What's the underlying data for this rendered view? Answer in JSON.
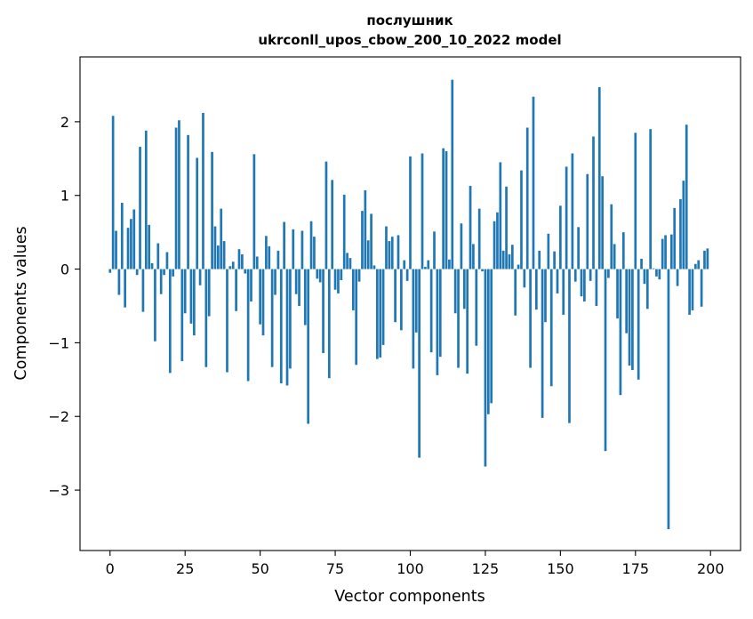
{
  "chart_data": {
    "type": "bar",
    "title_line1": "послушник",
    "title_line2": "ukrconll_upos_cbow_200_10_2022 model",
    "xlabel": "Vector components",
    "ylabel": "Components values",
    "xlim": [
      -10,
      210
    ],
    "ylim": [
      -3.82,
      2.88
    ],
    "xticks": [
      0,
      25,
      50,
      75,
      100,
      125,
      150,
      175,
      200
    ],
    "yticks": [
      -3,
      -2,
      -1,
      0,
      1,
      2
    ],
    "xtick_labels": [
      "0",
      "25",
      "50",
      "75",
      "100",
      "125",
      "150",
      "175",
      "200"
    ],
    "ytick_labels": [
      "−3",
      "−2",
      "−1",
      "0",
      "1",
      "2"
    ],
    "grid": false,
    "bar_color": "#1f77b4",
    "x": [
      0,
      1,
      2,
      3,
      4,
      5,
      6,
      7,
      8,
      9,
      10,
      11,
      12,
      13,
      14,
      15,
      16,
      17,
      18,
      19,
      20,
      21,
      22,
      23,
      24,
      25,
      26,
      27,
      28,
      29,
      30,
      31,
      32,
      33,
      34,
      35,
      36,
      37,
      38,
      39,
      40,
      41,
      42,
      43,
      44,
      45,
      46,
      47,
      48,
      49,
      50,
      51,
      52,
      53,
      54,
      55,
      56,
      57,
      58,
      59,
      60,
      61,
      62,
      63,
      64,
      65,
      66,
      67,
      68,
      69,
      70,
      71,
      72,
      73,
      74,
      75,
      76,
      77,
      78,
      79,
      80,
      81,
      82,
      83,
      84,
      85,
      86,
      87,
      88,
      89,
      90,
      91,
      92,
      93,
      94,
      95,
      96,
      97,
      98,
      99,
      100,
      101,
      102,
      103,
      104,
      105,
      106,
      107,
      108,
      109,
      110,
      111,
      112,
      113,
      114,
      115,
      116,
      117,
      118,
      119,
      120,
      121,
      122,
      123,
      124,
      125,
      126,
      127,
      128,
      129,
      130,
      131,
      132,
      133,
      134,
      135,
      136,
      137,
      138,
      139,
      140,
      141,
      142,
      143,
      144,
      145,
      146,
      147,
      148,
      149,
      150,
      151,
      152,
      153,
      154,
      155,
      156,
      157,
      158,
      159,
      160,
      161,
      162,
      163,
      164,
      165,
      166,
      167,
      168,
      169,
      170,
      171,
      172,
      173,
      174,
      175,
      176,
      177,
      178,
      179,
      180,
      181,
      182,
      183,
      184,
      185,
      186,
      187,
      188,
      189,
      190,
      191,
      192,
      193,
      194,
      195,
      196,
      197,
      198,
      199
    ],
    "values": [
      -0.05,
      2.08,
      0.52,
      -0.35,
      0.9,
      -0.52,
      0.56,
      0.68,
      0.81,
      -0.08,
      1.66,
      -0.58,
      1.88,
      0.6,
      0.08,
      -0.98,
      0.35,
      -0.34,
      -0.08,
      0.23,
      -1.41,
      -0.1,
      1.92,
      2.02,
      -1.25,
      -0.6,
      1.82,
      -0.74,
      -0.9,
      1.51,
      -0.22,
      2.12,
      -1.33,
      -0.64,
      1.59,
      0.58,
      0.32,
      0.82,
      0.38,
      -1.4,
      0.04,
      0.1,
      -0.57,
      0.27,
      0.2,
      -0.06,
      -1.52,
      -0.44,
      1.56,
      0.17,
      -0.75,
      -0.9,
      0.45,
      0.31,
      -1.33,
      -0.35,
      0.25,
      -1.55,
      0.64,
      -1.58,
      -1.35,
      0.54,
      -0.34,
      -0.5,
      0.52,
      -0.76,
      -2.1,
      0.65,
      0.44,
      -0.13,
      -0.18,
      -1.14,
      1.46,
      -1.48,
      1.21,
      -0.28,
      -0.33,
      -0.15,
      1.01,
      0.22,
      0.15,
      -0.56,
      -1.3,
      -0.17,
      0.79,
      1.07,
      0.39,
      0.75,
      0.05,
      -1.22,
      -1.2,
      -1.03,
      0.58,
      0.38,
      0.44,
      -0.72,
      0.46,
      -0.83,
      0.12,
      -0.16,
      1.53,
      -1.35,
      -0.86,
      -2.56,
      1.57,
      0.03,
      0.12,
      -1.13,
      0.51,
      -1.44,
      -1.19,
      1.64,
      1.6,
      0.13,
      2.57,
      -0.6,
      -1.34,
      0.62,
      -0.54,
      -1.42,
      1.13,
      0.34,
      -1.04,
      0.82,
      -0.03,
      -2.68,
      -1.97,
      -1.82,
      0.65,
      0.77,
      1.45,
      0.25,
      1.12,
      0.2,
      0.33,
      -0.63,
      0.06,
      1.34,
      -0.25,
      1.92,
      -1.34,
      2.34,
      -0.55,
      0.25,
      -2.02,
      -0.72,
      0.48,
      -1.59,
      0.24,
      -0.33,
      0.86,
      -0.62,
      1.39,
      -2.09,
      1.57,
      -0.17,
      0.57,
      -0.37,
      -0.44,
      1.29,
      -0.16,
      1.8,
      -0.5,
      2.47,
      1.26,
      -2.47,
      -0.12,
      0.88,
      0.34,
      -0.67,
      -1.71,
      0.5,
      -0.87,
      -1.31,
      -1.37,
      1.85,
      -1.5,
      0.14,
      -0.2,
      -0.54,
      1.9,
      0.01,
      -0.1,
      -0.14,
      0.41,
      0.46,
      -3.53,
      0.47,
      0.83,
      -0.23,
      0.95,
      1.2,
      1.96,
      -0.62,
      -0.56,
      0.07,
      0.12,
      -0.51,
      0.25,
      0.28
    ]
  }
}
